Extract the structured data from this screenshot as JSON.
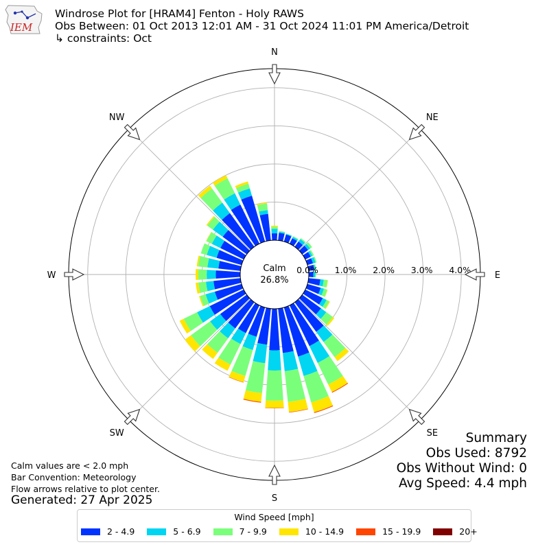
{
  "header": {
    "title": "Windrose Plot for [HRAM4] Fenton - Holy RAWS",
    "obs_between": "Obs Between: 01 Oct 2013 12:01 AM - 31 Oct 2024 11:01 PM America/Detroit",
    "constraints": "↳ constraints: Oct"
  },
  "logo": {
    "text": "IEM"
  },
  "notes": {
    "calm_note": "Calm values are < 2.0 mph",
    "bar_convention": "Bar Convention: Meteorology",
    "flow_note": "Flow arrows relative to plot center.",
    "generated": "Generated: 27 Apr 2025"
  },
  "summary": {
    "heading": "Summary",
    "obs_used": "Obs Used: 8792",
    "obs_without_wind": "Obs Without Wind: 0",
    "avg_speed": "Avg Speed: 4.4 mph"
  },
  "chart_data": {
    "type": "windrose",
    "calm_label": "Calm",
    "calm_value": "26.8%",
    "radial_unit": "%",
    "radial_ticks": [
      "0.0%",
      "1.0%",
      "2.0%",
      "3.0%",
      "4.0%"
    ],
    "radial_max": 4.5,
    "grid": true,
    "compass": [
      {
        "label": "N",
        "angle": 0
      },
      {
        "label": "NE",
        "angle": 45
      },
      {
        "label": "E",
        "angle": 90
      },
      {
        "label": "SE",
        "angle": 135
      },
      {
        "label": "S",
        "angle": 180
      },
      {
        "label": "SW",
        "angle": 225
      },
      {
        "label": "W",
        "angle": 270
      },
      {
        "label": "NW",
        "angle": 315
      }
    ],
    "legend": {
      "title": "Wind Speed [mph]",
      "placement": "bottom-center",
      "bins": [
        {
          "label": "2 - 4.9",
          "color": "#0033ff"
        },
        {
          "label": "5 - 6.9",
          "color": "#00d5f2"
        },
        {
          "label": "7 - 9.9",
          "color": "#7aff7a"
        },
        {
          "label": "10 - 14.9",
          "color": "#ffe500"
        },
        {
          "label": "15 - 19.9",
          "color": "#ff4500"
        },
        {
          "label": "20+",
          "color": "#800000"
        }
      ]
    },
    "directions": [
      0,
      10,
      20,
      30,
      40,
      50,
      60,
      70,
      80,
      90,
      100,
      110,
      120,
      130,
      140,
      150,
      160,
      170,
      180,
      190,
      200,
      210,
      220,
      230,
      240,
      250,
      260,
      270,
      280,
      290,
      300,
      310,
      320,
      330,
      340,
      350
    ],
    "cumulative": [
      [
        0.18,
        0.3,
        0.35,
        0.38,
        0.38,
        0.38
      ],
      [
        0.2,
        0.23,
        0.25,
        0.25,
        0.25,
        0.25
      ],
      [
        0.19,
        0.21,
        0.22,
        0.22,
        0.22,
        0.22
      ],
      [
        0.16,
        0.2,
        0.22,
        0.22,
        0.22,
        0.22
      ],
      [
        0.17,
        0.25,
        0.28,
        0.28,
        0.28,
        0.28
      ],
      [
        0.19,
        0.26,
        0.32,
        0.32,
        0.32,
        0.32
      ],
      [
        0.16,
        0.21,
        0.25,
        0.25,
        0.25,
        0.25
      ],
      [
        0.15,
        0.22,
        0.25,
        0.25,
        0.25,
        0.25
      ],
      [
        0.15,
        0.18,
        0.2,
        0.2,
        0.2,
        0.2
      ],
      [
        0.12,
        0.17,
        0.19,
        0.19,
        0.19,
        0.19
      ],
      [
        0.31,
        0.4,
        0.5,
        0.51,
        0.51,
        0.51
      ],
      [
        0.36,
        0.45,
        0.54,
        0.55,
        0.55,
        0.55
      ],
      [
        0.51,
        0.62,
        0.7,
        0.72,
        0.72,
        0.72
      ],
      [
        0.61,
        0.78,
        0.99,
        1.04,
        1.04,
        1.04
      ],
      [
        0.96,
        1.29,
        1.78,
        1.91,
        1.91,
        1.91
      ],
      [
        1.19,
        1.68,
        2.31,
        2.53,
        2.55,
        2.55
      ],
      [
        1.34,
        1.87,
        2.59,
        2.86,
        2.88,
        2.88
      ],
      [
        1.17,
        1.65,
        2.46,
        2.73,
        2.74,
        2.74
      ],
      [
        1.09,
        1.62,
        2.41,
        2.6,
        2.61,
        2.61
      ],
      [
        0.95,
        1.44,
        2.23,
        2.46,
        2.48,
        2.48
      ],
      [
        0.8,
        1.16,
        1.87,
        2.04,
        2.05,
        2.05
      ],
      [
        0.81,
        1.13,
        1.73,
        1.91,
        1.91,
        1.91
      ],
      [
        0.85,
        1.17,
        1.64,
        1.84,
        1.84,
        1.84
      ],
      [
        0.86,
        1.19,
        1.81,
        2.01,
        2.01,
        2.01
      ],
      [
        0.99,
        1.36,
        1.75,
        1.87,
        1.87,
        1.87
      ],
      [
        0.73,
        0.98,
        1.13,
        1.16,
        1.16,
        1.16
      ],
      [
        0.71,
        0.91,
        1.11,
        1.18,
        1.18,
        1.18
      ],
      [
        0.64,
        0.88,
        1.1,
        1.17,
        1.17,
        1.17
      ],
      [
        0.58,
        0.87,
        1.11,
        1.15,
        1.15,
        1.15
      ],
      [
        0.68,
        0.95,
        1.11,
        1.11,
        1.11,
        1.11
      ],
      [
        0.68,
        0.93,
        1.09,
        1.1,
        1.1,
        1.1
      ],
      [
        0.78,
        1.1,
        1.28,
        1.31,
        1.31,
        1.31
      ],
      [
        1.09,
        1.43,
        1.89,
        1.98,
        1.98,
        1.98
      ],
      [
        1.14,
        1.47,
        1.91,
        2.0,
        2.0,
        2.0
      ],
      [
        1.25,
        1.45,
        1.58,
        1.64,
        1.64,
        1.64
      ],
      [
        0.7,
        0.8,
        0.97,
        1.0,
        1.0,
        1.0
      ]
    ]
  }
}
